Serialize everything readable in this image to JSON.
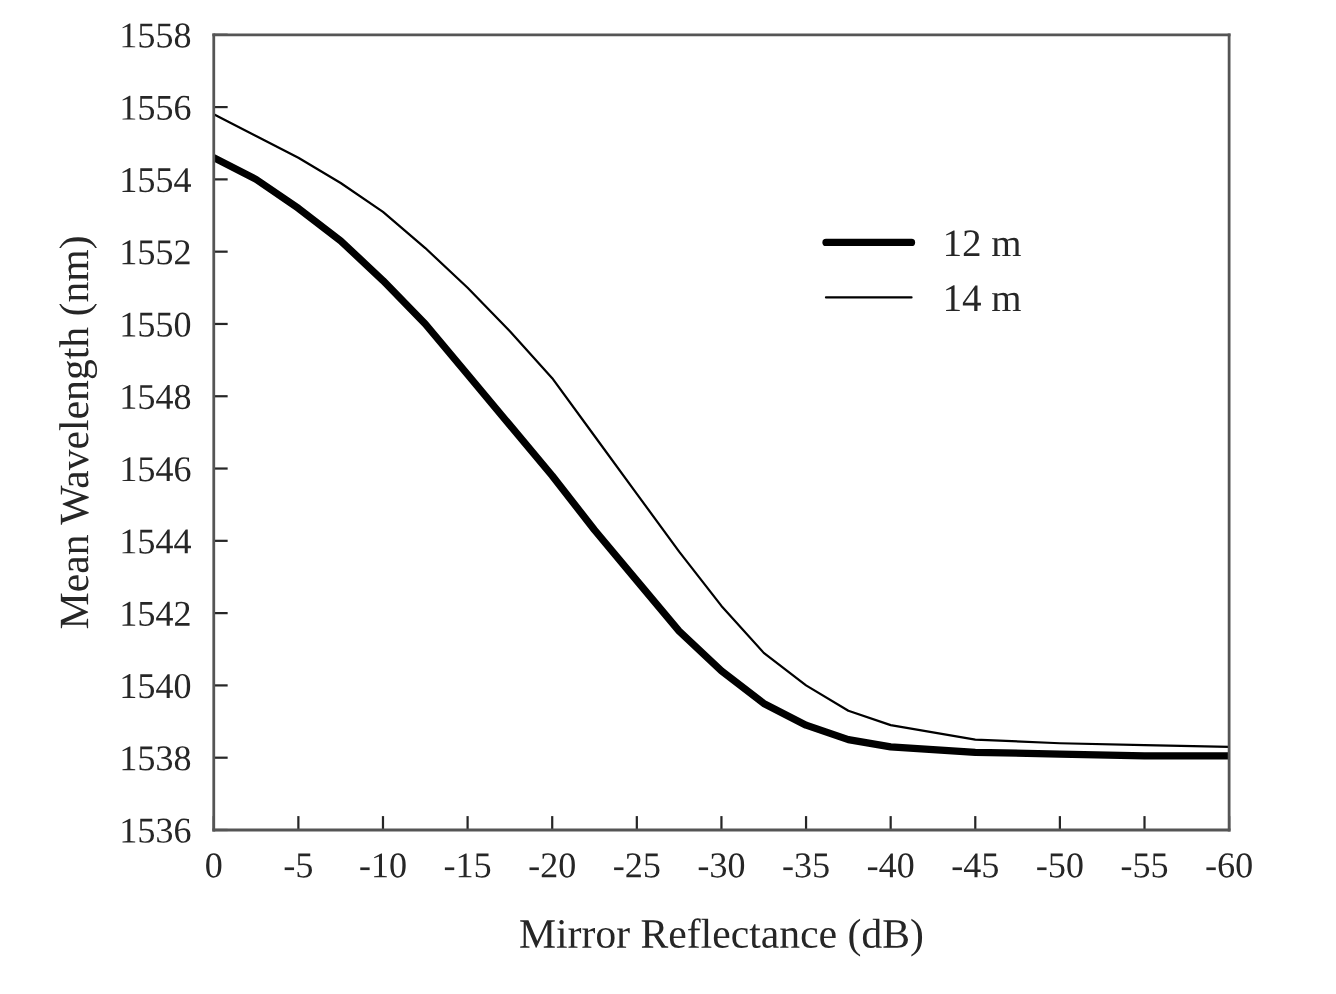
{
  "chart_data": {
    "type": "line",
    "xlabel": "Mirror Reflectance (dB)",
    "ylabel": "Mean Wavelength (nm)",
    "x": [
      0,
      -2.5,
      -5,
      -7.5,
      -10,
      -12.5,
      -15,
      -17.5,
      -20,
      -22.5,
      -25,
      -27.5,
      -30,
      -32.5,
      -35,
      -37.5,
      -40,
      -45,
      -50,
      -55,
      -60
    ],
    "series": [
      {
        "name": "12 m",
        "color": "#000000",
        "values": [
          1554.6,
          1554.0,
          1553.2,
          1552.3,
          1551.2,
          1550.0,
          1548.6,
          1547.2,
          1545.8,
          1544.3,
          1542.9,
          1541.5,
          1540.4,
          1539.5,
          1538.9,
          1538.5,
          1538.3,
          1538.15,
          1538.1,
          1538.05,
          1538.05
        ]
      },
      {
        "name": "14 m",
        "color": "#000000",
        "values": [
          1555.8,
          1555.2,
          1554.6,
          1553.9,
          1553.1,
          1552.1,
          1551.0,
          1549.8,
          1548.5,
          1546.9,
          1545.3,
          1543.7,
          1542.2,
          1540.9,
          1540.0,
          1539.3,
          1538.9,
          1538.5,
          1538.4,
          1538.35,
          1538.3
        ]
      }
    ],
    "xlim": [
      0,
      -60
    ],
    "xticks": [
      0,
      -5,
      -10,
      -15,
      -20,
      -25,
      -30,
      -35,
      -40,
      -45,
      -50,
      -55,
      -60
    ],
    "ylim": [
      1536,
      1558
    ],
    "yticks": [
      1536,
      1538,
      1540,
      1542,
      1544,
      1546,
      1548,
      1550,
      1552,
      1554,
      1556,
      1558
    ],
    "grid": false,
    "legend": "top right",
    "marker": "none",
    "line_style": "solid"
  }
}
